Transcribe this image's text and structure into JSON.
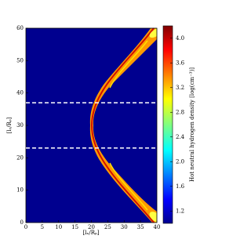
{
  "chart_data": {
    "type": "heatmap",
    "x_label": "[lₓ/Rₚ]",
    "y_label": "[lᵧ/Rₚ]",
    "colorbar_label": "Hot neutral hydrogen density [log(cm⁻³)]",
    "xlim": [
      0,
      40
    ],
    "xticks": [
      0,
      5,
      10,
      15,
      20,
      25,
      30,
      35,
      40
    ],
    "ylim": [
      0,
      60
    ],
    "yticks": [
      0,
      10,
      20,
      30,
      40,
      50,
      60
    ],
    "clim": [
      1.0,
      4.2
    ],
    "cticks": [
      1.2,
      1.6,
      {
        "value": 2,
        "label": "2.0"
      },
      2.4,
      2.8,
      3.2,
      3.6,
      {
        "value": 4,
        "label": "4.0"
      }
    ],
    "hlines": [
      37,
      23
    ],
    "hline_color": "#ffffff"
  }
}
